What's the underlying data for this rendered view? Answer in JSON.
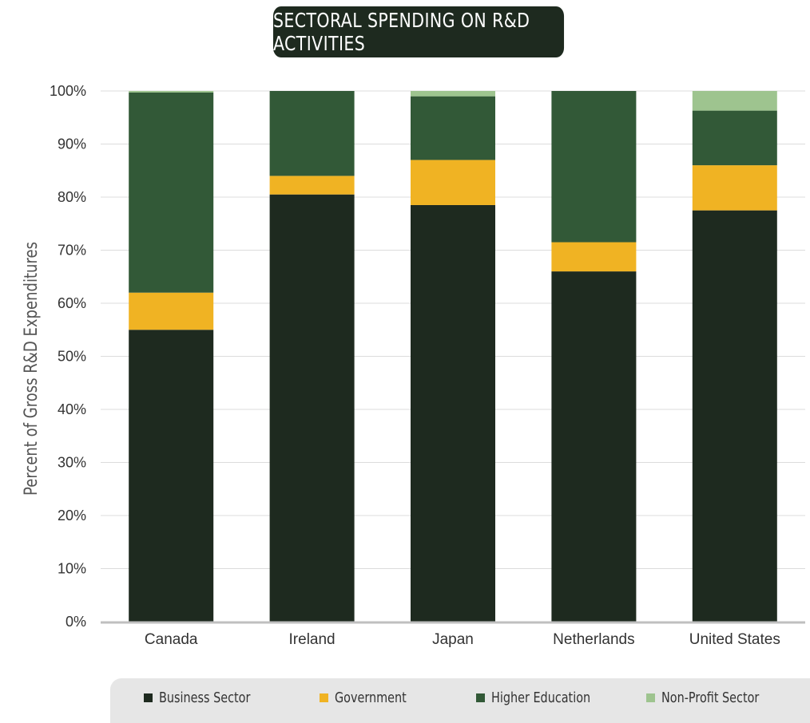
{
  "title": "SECTORAL SPENDING ON R&D ACTIVITIES",
  "colors": {
    "business": "#1e2a1f",
    "government": "#f0b323",
    "higher_education": "#325937",
    "non_profit": "#9ec48f",
    "grid": "#dcdcdc",
    "axis": "#bfbfbf"
  },
  "chart_data": {
    "type": "bar",
    "stacked": true,
    "title": "SECTORAL SPENDING ON R&D ACTIVITIES",
    "xlabel": "",
    "ylabel": "Percent of Gross R&D Expenditures",
    "ylim": [
      0,
      100
    ],
    "yticks": [
      "0%",
      "10%",
      "20%",
      "30%",
      "40%",
      "50%",
      "60%",
      "70%",
      "80%",
      "90%",
      "100%"
    ],
    "categories": [
      "Canada",
      "Ireland",
      "Japan",
      "Netherlands",
      "United States"
    ],
    "series": [
      {
        "name": "Business Sector",
        "color": "#1e2a1f",
        "values": [
          55,
          80.5,
          78.5,
          66,
          77.5
        ]
      },
      {
        "name": "Government",
        "color": "#f0b323",
        "values": [
          7,
          3.5,
          8.5,
          5.5,
          8.5
        ]
      },
      {
        "name": "Higher Education",
        "color": "#325937",
        "values": [
          37.7,
          16,
          12,
          28.5,
          10.3
        ]
      },
      {
        "name": "Non-Profit Sector",
        "color": "#9ec48f",
        "values": [
          0.3,
          0,
          1,
          0,
          3.7
        ]
      }
    ],
    "grid": true,
    "legend": "bottom"
  }
}
